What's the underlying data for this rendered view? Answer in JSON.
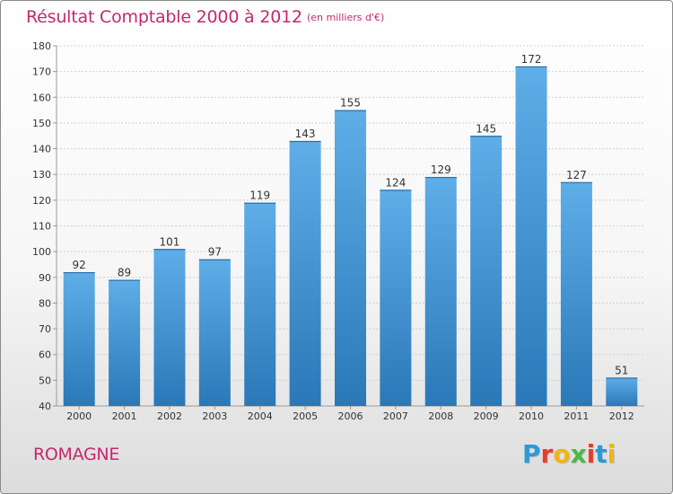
{
  "header": {
    "title": "Résultat Comptable 2000 à 2012",
    "subtitle": "(en milliers d'€)"
  },
  "footer": {
    "commune": "ROMAGNE",
    "logo": {
      "text": "Proxiti",
      "colors": [
        "#2b9ad6",
        "#e63c2e",
        "#f0b418",
        "#4cb848",
        "#e63c2e",
        "#2b9ad6",
        "#f0b418"
      ]
    }
  },
  "colors": {
    "accent": "#c5286d",
    "bar_top": "#5faee8",
    "bar_bottom": "#2a78b7"
  },
  "chart_data": {
    "type": "bar",
    "title": "Résultat Comptable 2000 à 2012",
    "subtitle": "(en milliers d'€)",
    "categories": [
      "2000",
      "2001",
      "2002",
      "2003",
      "2004",
      "2005",
      "2006",
      "2007",
      "2008",
      "2009",
      "2010",
      "2011",
      "2012"
    ],
    "values": [
      92,
      89,
      101,
      97,
      119,
      143,
      155,
      124,
      129,
      145,
      172,
      127,
      51
    ],
    "ylim": [
      40,
      180
    ],
    "yticks": [
      40,
      50,
      60,
      70,
      80,
      90,
      100,
      110,
      120,
      130,
      140,
      150,
      160,
      170,
      180
    ],
    "grid": true,
    "xlabel": "",
    "ylabel": ""
  }
}
